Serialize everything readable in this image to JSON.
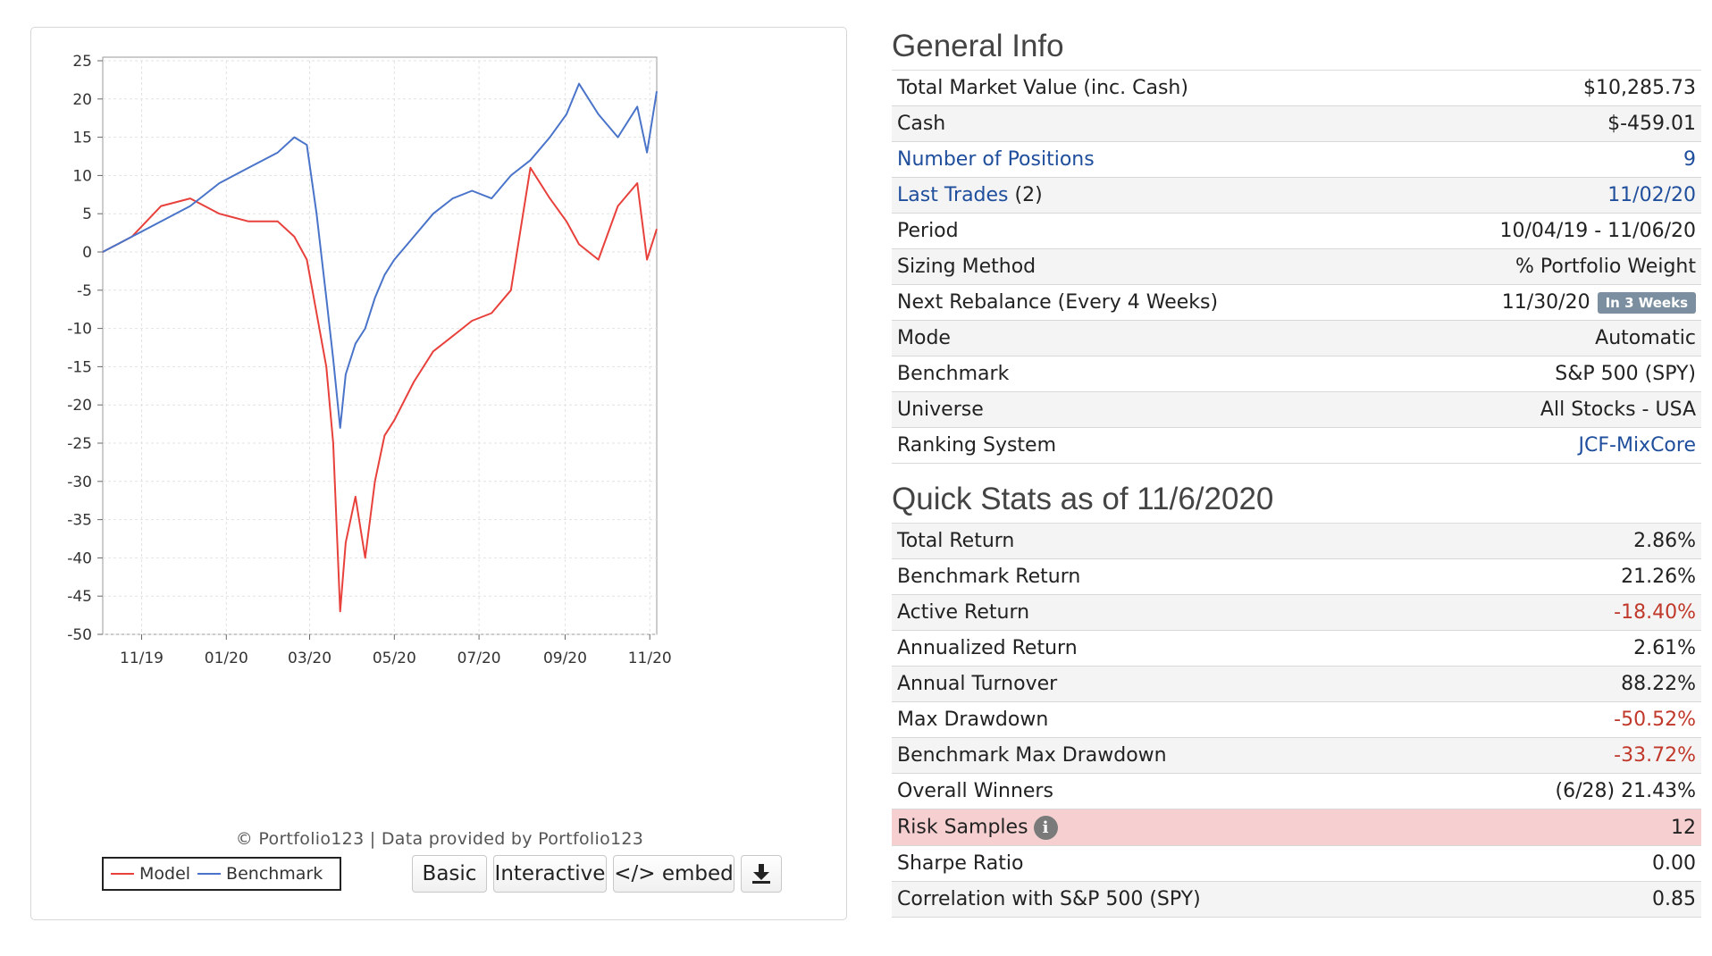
{
  "chart": {
    "copyright": "© Portfolio123 | Data provided by Portfolio123",
    "legend": [
      {
        "label": "Model",
        "color": "#e8413c"
      },
      {
        "label": "Benchmark",
        "color": "#4a74c9"
      }
    ],
    "buttons": {
      "basic": "Basic",
      "interactive": "Interactive",
      "embed": "</> embed"
    },
    "download_icon": "download-icon"
  },
  "chart_data": {
    "type": "line",
    "title": "",
    "xlabel": "",
    "ylabel": "",
    "ylim": [
      -50,
      25
    ],
    "yticks": [
      25,
      20,
      15,
      10,
      5,
      0,
      -5,
      -10,
      -15,
      -20,
      -25,
      -30,
      -35,
      -40,
      -45,
      -50
    ],
    "xticks": [
      "11/19",
      "01/20",
      "03/20",
      "05/20",
      "07/20",
      "09/20",
      "11/20"
    ],
    "grid": true,
    "legend_position": "bottom-left",
    "x": [
      "10/04/19",
      "10/25/19",
      "11/15/19",
      "12/06/19",
      "12/27/19",
      "01/17/20",
      "02/07/20",
      "02/19/20",
      "02/28/20",
      "03/06/20",
      "03/13/20",
      "03/18/20",
      "03/23/20",
      "03/27/20",
      "04/03/20",
      "04/10/20",
      "04/17/20",
      "04/24/20",
      "05/01/20",
      "05/15/20",
      "05/29/20",
      "06/12/20",
      "06/26/20",
      "07/10/20",
      "07/24/20",
      "08/07/20",
      "08/21/20",
      "09/02/20",
      "09/11/20",
      "09/25/20",
      "10/09/20",
      "10/23/20",
      "10/30/20",
      "11/06/20"
    ],
    "series": [
      {
        "name": "Model",
        "color": "#e8413c",
        "values": [
          0,
          2,
          6,
          7,
          5,
          4,
          4,
          2,
          -1,
          -8,
          -15,
          -25,
          -47,
          -38,
          -32,
          -40,
          -30,
          -24,
          -22,
          -17,
          -13,
          -11,
          -9,
          -8,
          -5,
          11,
          7,
          4,
          1,
          -1,
          6,
          9,
          -1,
          3
        ]
      },
      {
        "name": "Benchmark",
        "color": "#4a74c9",
        "values": [
          0,
          2,
          4,
          6,
          9,
          11,
          13,
          15,
          14,
          5,
          -6,
          -14,
          -23,
          -16,
          -12,
          -10,
          -6,
          -3,
          -1,
          2,
          5,
          7,
          8,
          7,
          10,
          12,
          15,
          18,
          22,
          18,
          15,
          19,
          13,
          21
        ]
      }
    ]
  },
  "general_info": {
    "title": "General Info",
    "rows": [
      {
        "label": "Total Market Value (inc. Cash)",
        "value": "$10,285.73"
      },
      {
        "label": "Cash",
        "value": "$-459.01"
      },
      {
        "label": "Number of Positions",
        "value": "9"
      },
      {
        "label": "Last Trades",
        "label_suffix": " (2)",
        "value": "11/02/20"
      },
      {
        "label": "Period",
        "value": "10/04/19 - 11/06/20"
      },
      {
        "label": "Sizing Method",
        "value": "% Portfolio Weight"
      },
      {
        "label": "Next Rebalance (Every 4 Weeks)",
        "value": "11/30/20",
        "badge": "In 3 Weeks"
      },
      {
        "label": "Mode",
        "value": "Automatic"
      },
      {
        "label": "Benchmark",
        "value": "S&P 500 (SPY)"
      },
      {
        "label": "Universe",
        "value": "All Stocks - USA"
      },
      {
        "label": "Ranking System",
        "value": "JCF-MixCore"
      }
    ]
  },
  "quick_stats": {
    "title": "Quick Stats as of 11/6/2020",
    "rows": [
      {
        "label": "Total Return",
        "value": "2.86%"
      },
      {
        "label": "Benchmark Return",
        "value": "21.26%"
      },
      {
        "label": "Active Return",
        "value": "-18.40%"
      },
      {
        "label": "Annualized Return",
        "value": "2.61%"
      },
      {
        "label": "Annual Turnover",
        "value": "88.22%"
      },
      {
        "label": "Max Drawdown",
        "value": "-50.52%"
      },
      {
        "label": "Benchmark Max Drawdown",
        "value": "-33.72%"
      },
      {
        "label": "Overall Winners",
        "value": "(6/28) 21.43%"
      },
      {
        "label": "Risk Samples",
        "value": "12",
        "icon": "info-icon",
        "icon_glyph": "i"
      },
      {
        "label": "Sharpe Ratio",
        "value": "0.00"
      },
      {
        "label": "Correlation with S&P 500 (SPY)",
        "value": "0.85"
      }
    ]
  },
  "colors": {
    "link": "#1f4e9c",
    "negative": "#c0392b",
    "highlight": "#f6d0d0",
    "badge": "#7c8fa0"
  }
}
